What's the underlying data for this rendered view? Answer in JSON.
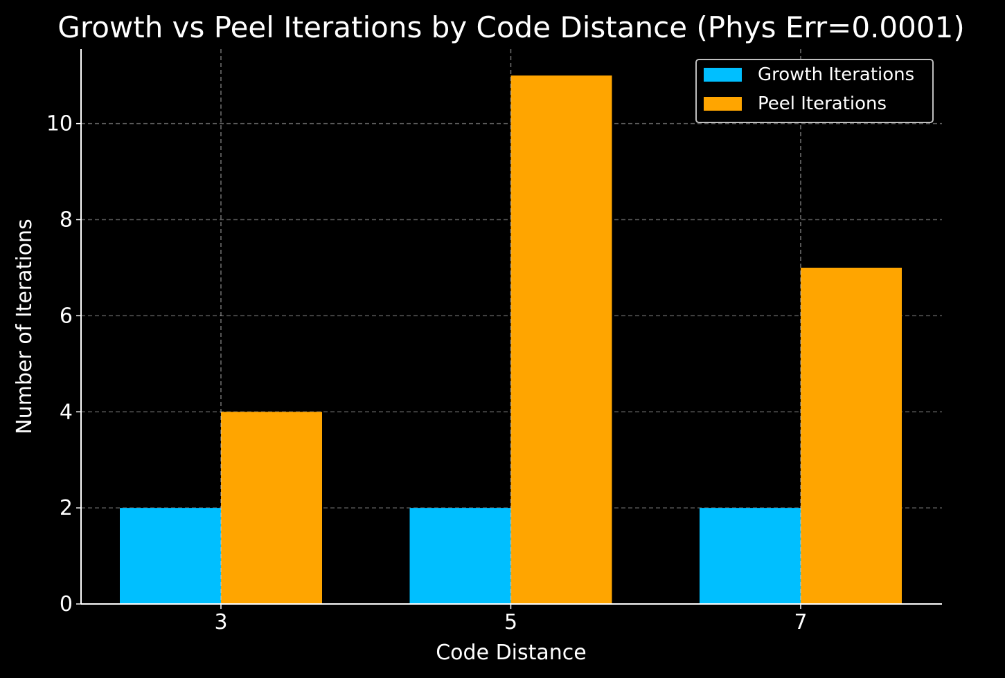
{
  "chart_data": {
    "type": "bar",
    "title": "Growth vs Peel Iterations by Code Distance (Phys Err=0.0001)",
    "xlabel": "Code Distance",
    "ylabel": "Number of Iterations",
    "categories": [
      "3",
      "5",
      "7"
    ],
    "series": [
      {
        "name": "Growth Iterations",
        "values": [
          2,
          2,
          2
        ],
        "color": "#00bfff"
      },
      {
        "name": "Peel Iterations",
        "values": [
          4,
          11,
          7
        ],
        "color": "#ffa500"
      }
    ],
    "ylim": [
      0,
      11.55
    ],
    "yticks": [
      "0",
      "2",
      "4",
      "6",
      "8",
      "10"
    ],
    "grid": true,
    "legend_position": "top-right",
    "background": "#000000",
    "foreground": "#ffffff"
  }
}
